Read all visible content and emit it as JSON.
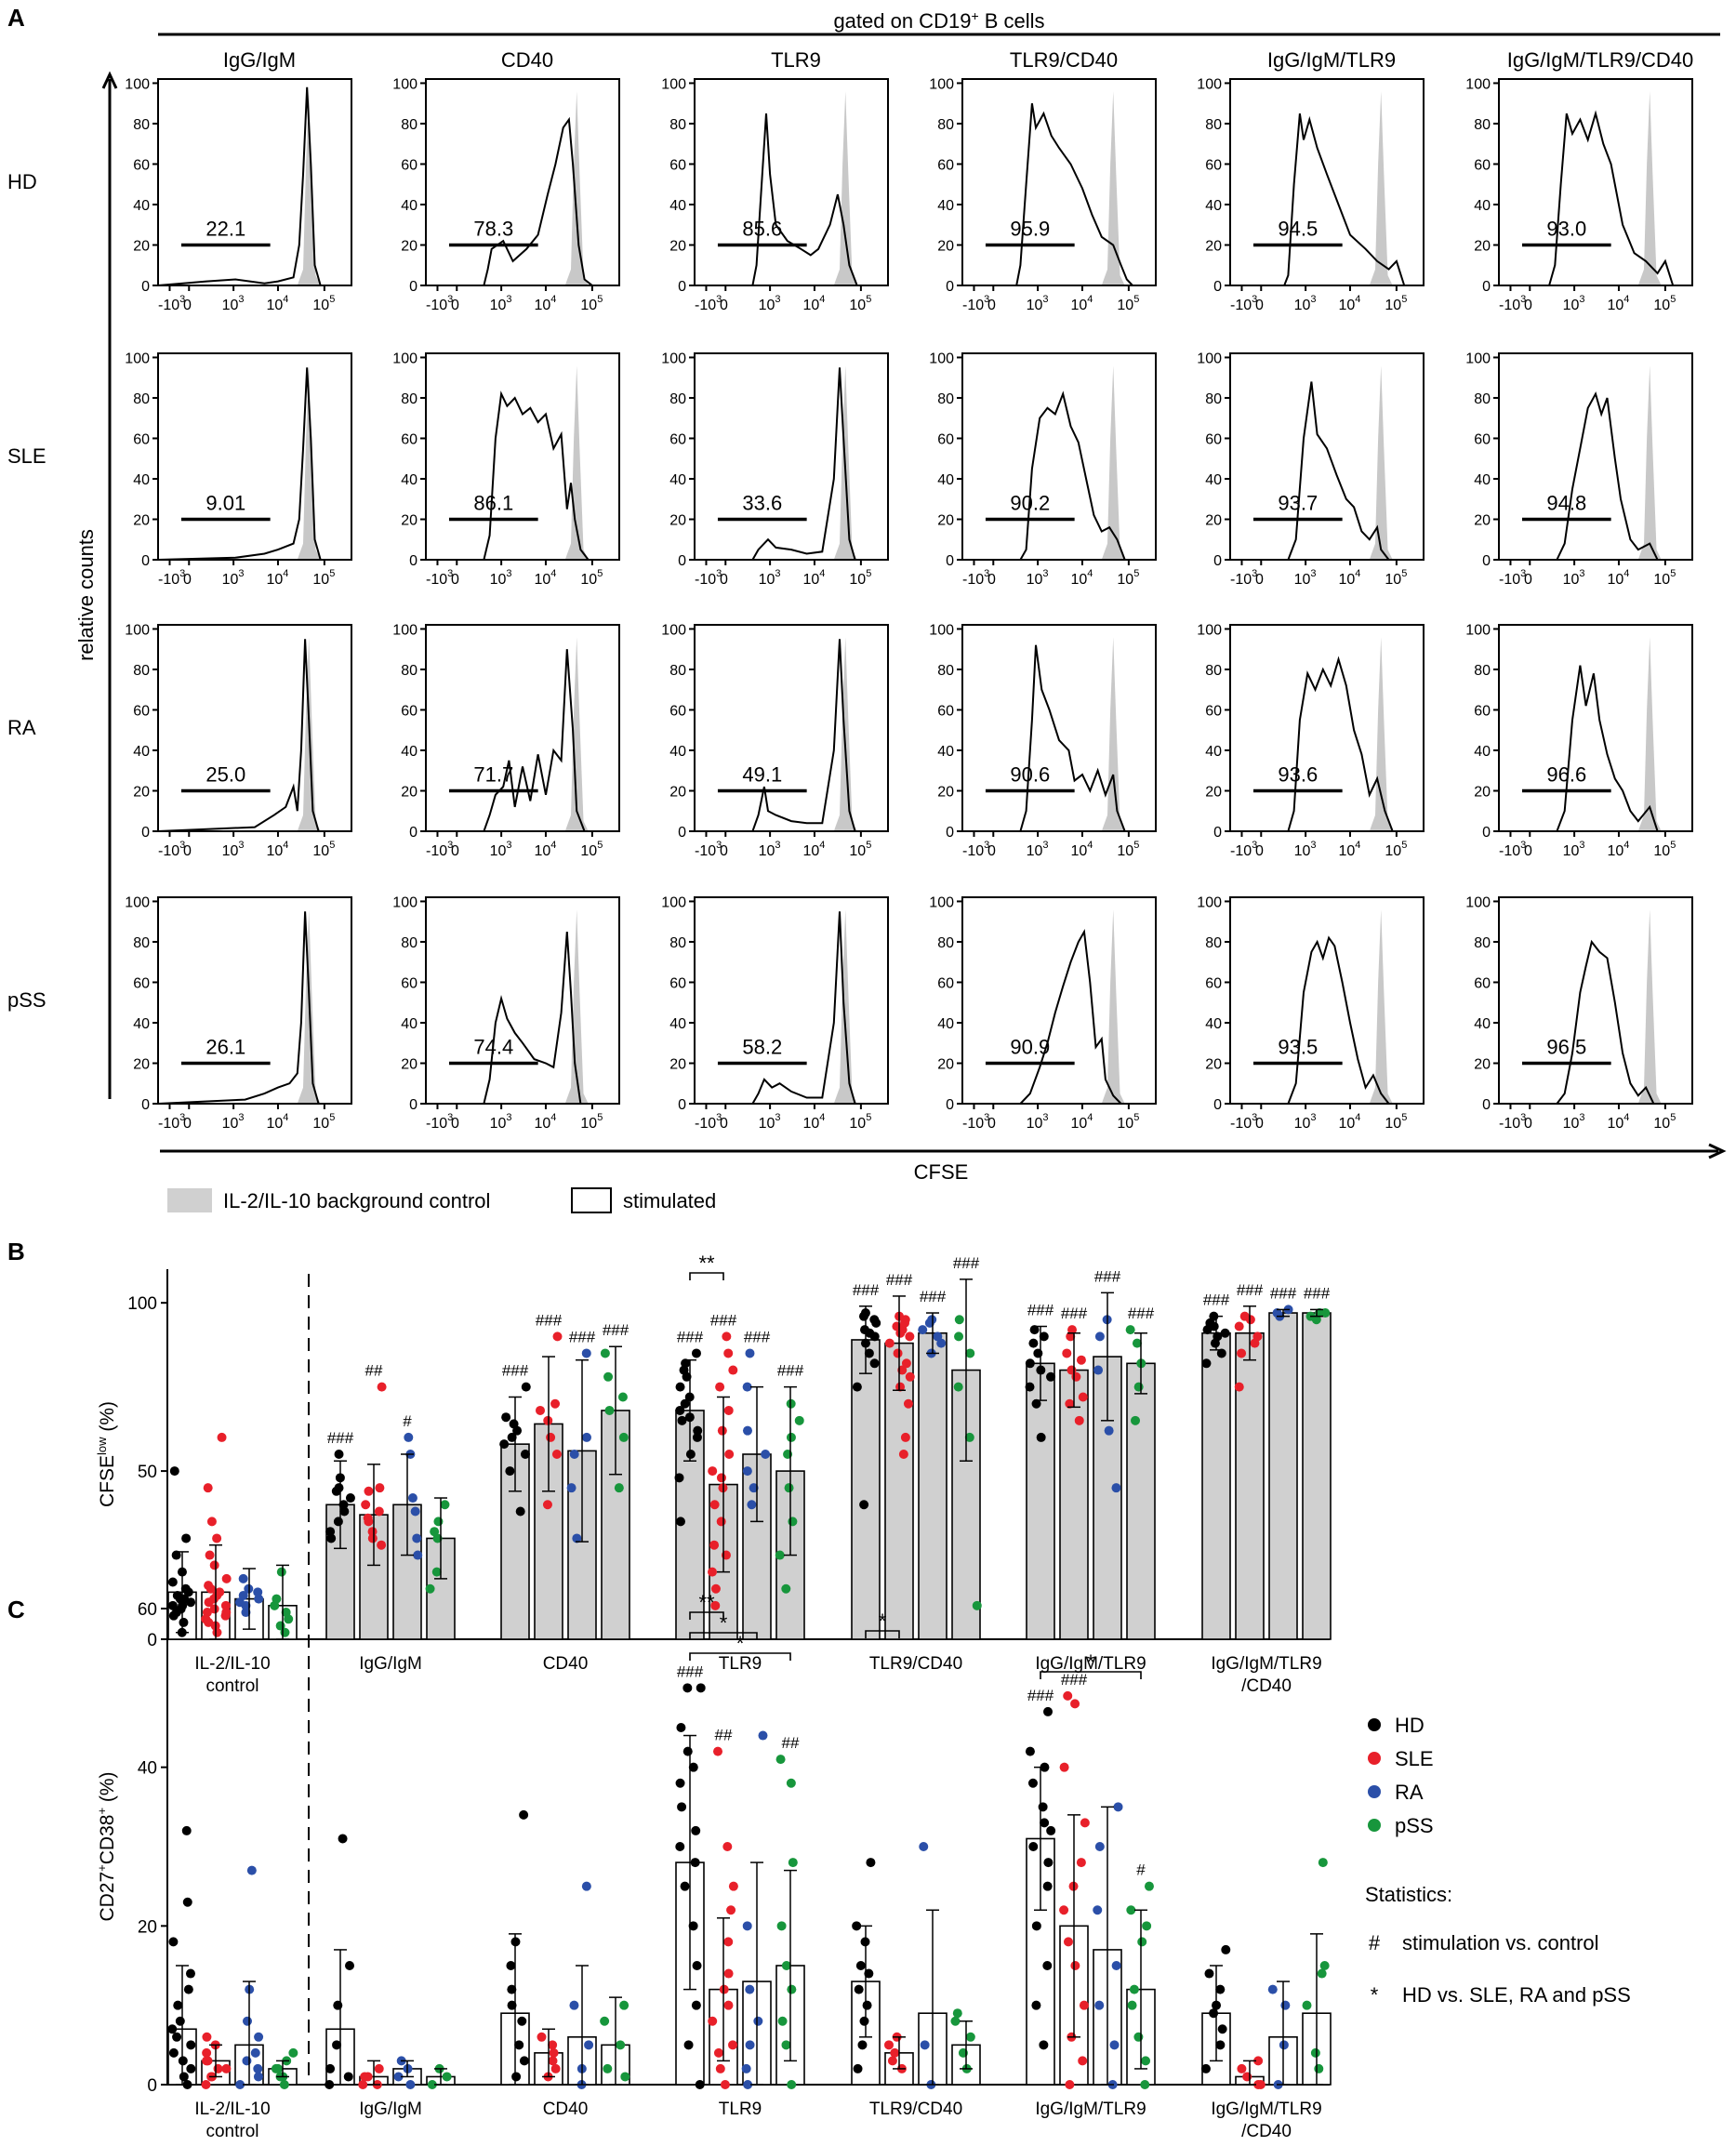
{
  "panel_labels": {
    "a": "A",
    "b": "B",
    "c": "C"
  },
  "panelA": {
    "header": "gated on CD19",
    "header_sup": "+",
    "header_tail": " B cells",
    "columns": [
      "IgG/IgM",
      "CD40",
      "TLR9",
      "TLR9/CD40",
      "IgG/IgM/TLR9",
      "IgG/IgM/TLR9/CD40"
    ],
    "rows": [
      "HD",
      "SLE",
      "RA",
      "pSS"
    ],
    "y_axis_label": "relative counts",
    "x_axis_label": "CFSE",
    "y_ticks": [
      "100",
      "80",
      "60",
      "40",
      "20",
      "0"
    ],
    "x_ticks": {
      "neg": "-10",
      "zero": "0",
      "ten": "10",
      "e3": "3",
      "e4": "4",
      "e5": "5"
    },
    "percentages": [
      [
        "22.1",
        "78.3",
        "85.6",
        "95.9",
        "94.5",
        "93.0"
      ],
      [
        "9.01",
        "86.1",
        "33.6",
        "90.2",
        "93.7",
        "94.8"
      ],
      [
        "25.0",
        "71.7",
        "49.1",
        "90.6",
        "93.6",
        "96.6"
      ],
      [
        "26.1",
        "74.4",
        "58.2",
        "90.9",
        "93.5",
        "96.5"
      ]
    ],
    "legend": {
      "control": "IL-2/IL-10 background control",
      "stimulated": "stimulated"
    },
    "colors": {
      "control_fill": "#c8c8c8",
      "line": "#000000"
    }
  },
  "chart_data": [
    {
      "type": "bar",
      "panel": "B",
      "ylabel_main": "CFSE",
      "ylabel_sup": "low",
      "ylabel_unit": " (%)",
      "ylim": [
        0,
        110
      ],
      "yticks": [
        "0",
        "50",
        "100"
      ],
      "categories": [
        "IL-2/IL-10\ncontrol",
        "IgG/IgM",
        "CD40",
        "TLR9",
        "TLR9/CD40",
        "IgG/IgM/TLR9",
        "IgG/IgM/TLR9\n/CD40"
      ],
      "series": [
        {
          "name": "HD",
          "values": [
            14,
            40,
            58,
            68,
            89,
            82,
            91
          ],
          "sd": [
            12,
            13,
            14,
            15,
            10,
            11,
            5
          ]
        },
        {
          "name": "SLE",
          "values": [
            14,
            37,
            64,
            46,
            88,
            80,
            91
          ],
          "sd": [
            14,
            15,
            20,
            26,
            14,
            11,
            8
          ]
        },
        {
          "name": "RA",
          "values": [
            12,
            40,
            56,
            55,
            91,
            84,
            97
          ],
          "sd": [
            9,
            15,
            27,
            20,
            6,
            19,
            1
          ]
        },
        {
          "name": "pSS",
          "values": [
            10,
            30,
            68,
            50,
            80,
            82,
            97
          ],
          "sd": [
            12,
            12,
            19,
            25,
            27,
            9,
            1
          ]
        }
      ],
      "points": {
        "HD": [
          [
            2,
            5,
            7,
            8,
            9,
            10,
            10,
            11,
            12,
            12,
            13,
            14,
            15,
            17,
            20,
            25,
            30,
            50
          ],
          [
            30,
            32,
            35,
            38,
            40,
            42,
            44,
            45,
            48,
            55
          ],
          [
            38,
            50,
            55,
            58,
            60,
            62,
            64,
            66,
            75
          ],
          [
            35,
            48,
            55,
            60,
            62,
            65,
            66,
            68,
            70,
            72,
            75,
            78,
            80,
            82,
            85
          ],
          [
            40,
            75,
            82,
            85,
            88,
            90,
            91,
            92,
            94,
            95,
            96,
            97
          ],
          [
            60,
            70,
            75,
            78,
            80,
            82,
            85,
            88,
            90,
            92
          ],
          [
            82,
            85,
            88,
            90,
            91,
            92,
            93,
            94,
            96
          ]
        ],
        "SLE": [
          [
            2,
            4,
            5,
            6,
            7,
            8,
            8,
            9,
            10,
            11,
            12,
            13,
            14,
            15,
            16,
            18,
            22,
            25,
            30,
            35,
            45,
            60
          ],
          [
            28,
            30,
            32,
            35,
            36,
            38,
            40,
            44,
            45,
            75
          ],
          [
            40,
            55,
            60,
            65,
            68,
            70,
            90
          ],
          [
            10,
            15,
            20,
            25,
            28,
            35,
            40,
            45,
            48,
            50,
            55,
            62,
            68,
            75,
            80,
            85,
            90
          ],
          [
            55,
            60,
            70,
            75,
            78,
            80,
            82,
            85,
            88,
            90,
            91,
            92,
            93,
            94,
            95,
            96
          ],
          [
            65,
            70,
            72,
            78,
            80,
            83,
            85,
            90,
            92
          ],
          [
            75,
            85,
            88,
            90,
            93,
            95,
            96
          ]
        ],
        "RA": [
          [
            8,
            10,
            11,
            12,
            13,
            14,
            15,
            18
          ],
          [
            25,
            30,
            38,
            42,
            55,
            60
          ],
          [
            30,
            45,
            55,
            60,
            85
          ],
          [
            40,
            45,
            50,
            55,
            62,
            75,
            85
          ],
          [
            85,
            88,
            90,
            92,
            94,
            95
          ],
          [
            45,
            62,
            80,
            90,
            95
          ],
          [
            96,
            97,
            98
          ]
        ],
        "pSS": [
          [
            2,
            4,
            6,
            8,
            10,
            12,
            20
          ],
          [
            15,
            20,
            30,
            32,
            35,
            40
          ],
          [
            45,
            60,
            68,
            72,
            78,
            85
          ],
          [
            15,
            25,
            35,
            45,
            55,
            60,
            65,
            70
          ],
          [
            10,
            60,
            75,
            85,
            90,
            95
          ],
          [
            65,
            75,
            82,
            88,
            92
          ],
          [
            95,
            96,
            97,
            97
          ]
        ]
      },
      "annotations": {
        "hash": [
          [
            null,
            null,
            null,
            null
          ],
          [
            "###",
            "##",
            "#",
            ""
          ],
          [
            "###",
            "###",
            "###",
            "###"
          ],
          [
            "###",
            "###",
            "###",
            "###"
          ],
          [
            "###",
            "###",
            "###",
            "###"
          ],
          [
            "###",
            "###",
            "###",
            "###"
          ],
          [
            "###",
            "###",
            "###",
            "###"
          ]
        ],
        "star": [
          {
            "group": 3,
            "from": 0,
            "to": 1,
            "label": "**"
          }
        ]
      }
    },
    {
      "type": "bar",
      "panel": "C",
      "ylabel_main": "CD27",
      "ylabel_sup1": "+",
      "ylabel_mid": "CD38",
      "ylabel_sup2": "+",
      "ylabel_unit": " (%)",
      "ylim": [
        0,
        60
      ],
      "yticks": [
        "0",
        "20",
        "40",
        "60"
      ],
      "categories": [
        "IL-2/IL-10\ncontrol",
        "IgG/IgM",
        "CD40",
        "TLR9",
        "TLR9/CD40",
        "IgG/IgM/TLR9",
        "IgG/IgM/TLR9\n/CD40"
      ],
      "series": [
        {
          "name": "HD",
          "values": [
            7,
            7,
            9,
            28,
            13,
            31,
            9
          ],
          "sd": [
            8,
            10,
            10,
            16,
            7,
            9,
            6
          ]
        },
        {
          "name": "SLE",
          "values": [
            3,
            1,
            4,
            12,
            4,
            20,
            1
          ],
          "sd": [
            2,
            2,
            3,
            9,
            2,
            14,
            2
          ]
        },
        {
          "name": "RA",
          "values": [
            5,
            2,
            6,
            13,
            9,
            17,
            6
          ],
          "sd": [
            8,
            1,
            9,
            15,
            13,
            18,
            7
          ]
        },
        {
          "name": "pSS",
          "values": [
            2,
            1,
            5,
            15,
            5,
            12,
            9
          ],
          "sd": [
            1,
            1,
            6,
            12,
            3,
            10,
            10
          ]
        }
      ],
      "points": {
        "HD": [
          [
            0,
            1,
            2,
            3,
            4,
            5,
            6,
            7,
            8,
            10,
            12,
            14,
            18,
            23,
            32
          ],
          [
            0,
            1,
            2,
            5,
            10,
            15,
            31
          ],
          [
            1,
            3,
            5,
            8,
            10,
            12,
            15,
            18,
            34
          ],
          [
            0,
            5,
            10,
            15,
            20,
            25,
            28,
            30,
            32,
            35,
            38,
            40,
            42,
            45,
            50,
            50
          ],
          [
            2,
            5,
            8,
            10,
            12,
            14,
            15,
            18,
            20,
            28
          ],
          [
            5,
            10,
            15,
            20,
            25,
            28,
            30,
            32,
            33,
            35,
            38,
            40,
            42,
            47
          ],
          [
            2,
            5,
            7,
            9,
            10,
            12,
            14,
            17
          ]
        ],
        "SLE": [
          [
            0,
            1,
            1,
            2,
            2,
            3,
            3,
            4,
            5,
            6
          ],
          [
            0,
            0,
            1,
            1,
            2
          ],
          [
            1,
            2,
            3,
            4,
            5,
            6
          ],
          [
            0,
            2,
            4,
            5,
            8,
            10,
            12,
            14,
            18,
            22,
            25,
            30,
            42
          ],
          [
            2,
            3,
            4,
            5,
            6
          ],
          [
            0,
            3,
            6,
            10,
            15,
            18,
            22,
            25,
            28,
            33,
            40,
            48,
            49
          ],
          [
            0,
            0,
            1,
            2,
            3
          ]
        ],
        "RA": [
          [
            0,
            1,
            2,
            3,
            4,
            6,
            8,
            12,
            27
          ],
          [
            0,
            1,
            2,
            3
          ],
          [
            0,
            2,
            5,
            10,
            25
          ],
          [
            0,
            2,
            5,
            8,
            12,
            20,
            44
          ],
          [
            0,
            5,
            30
          ],
          [
            0,
            5,
            10,
            15,
            22,
            30,
            35
          ],
          [
            0,
            5,
            10,
            12
          ]
        ],
        "pSS": [
          [
            0,
            1,
            1,
            2,
            2,
            3,
            4
          ],
          [
            0,
            1,
            2
          ],
          [
            1,
            2,
            5,
            8,
            10
          ],
          [
            0,
            5,
            8,
            12,
            15,
            20,
            28,
            38,
            41
          ],
          [
            2,
            4,
            6,
            8,
            9
          ],
          [
            0,
            3,
            6,
            10,
            12,
            18,
            20,
            22,
            25
          ],
          [
            2,
            4,
            10,
            14,
            15,
            28
          ]
        ]
      },
      "annotations": {
        "hash": [
          [
            null,
            null,
            null,
            null
          ],
          [
            null,
            null,
            null,
            null
          ],
          [
            null,
            null,
            null,
            null
          ],
          [
            "###",
            "##",
            "",
            "##"
          ],
          [
            null,
            null,
            null,
            null
          ],
          [
            "###",
            "###",
            "",
            "#"
          ],
          [
            null,
            null,
            null,
            null
          ]
        ],
        "star": [
          {
            "group": 3,
            "from": 0,
            "to": 1,
            "label": "**"
          },
          {
            "group": 3,
            "from": 0,
            "to": 2,
            "label": "*"
          },
          {
            "group": 3,
            "from": 0,
            "to": 3,
            "label": "*"
          },
          {
            "group": 4,
            "from": 0,
            "to": 1,
            "label": "*"
          },
          {
            "group": 5,
            "from": 0,
            "to": 3,
            "label": "*"
          }
        ]
      }
    }
  ],
  "legendBC": {
    "series": [
      {
        "name": "HD",
        "color": "#000000"
      },
      {
        "name": "SLE",
        "color": "#e8202a"
      },
      {
        "name": "RA",
        "color": "#2b4fa8"
      },
      {
        "name": "pSS",
        "color": "#17963c"
      }
    ],
    "stats_title": "Statistics:",
    "stats": [
      {
        "symbol": "#",
        "text": "stimulation vs. control"
      },
      {
        "symbol": "*",
        "text": "HD vs. SLE, RA and pSS"
      }
    ]
  },
  "colors": {
    "bar_fill_B": "#d0d0d0",
    "bar_fill_C": "#ffffff",
    "HD": "#000000",
    "SLE": "#e8202a",
    "RA": "#2b4fa8",
    "pSS": "#17963c"
  }
}
